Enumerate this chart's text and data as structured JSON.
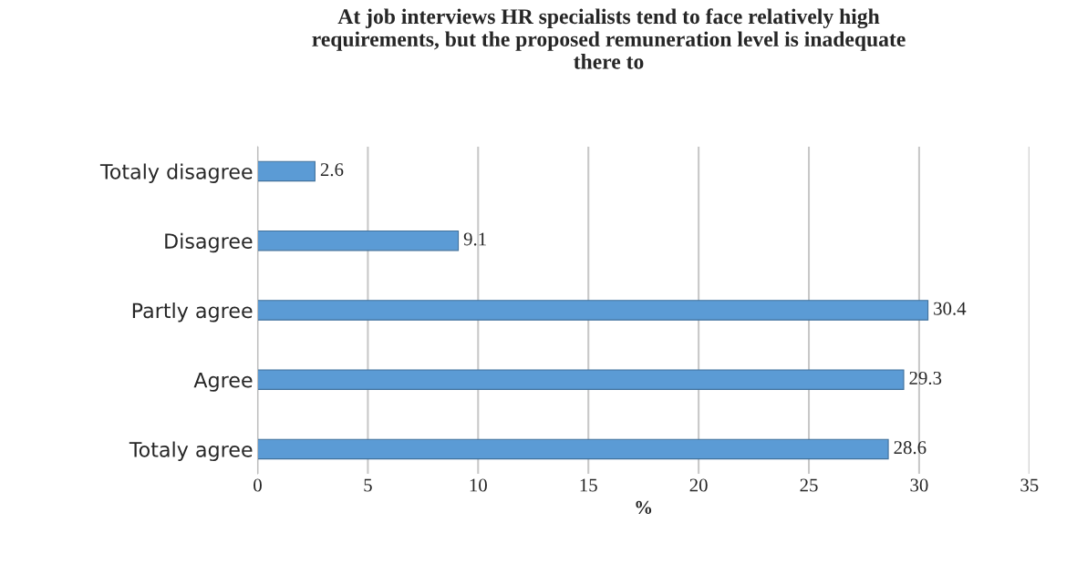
{
  "chart_data": {
    "type": "bar",
    "orientation": "horizontal",
    "title": "At job interviews HR specialists tend to face relatively high\nrequirements, but the proposed remuneration level is inadequate\nthere to",
    "xlabel": "%",
    "categories": [
      "Totaly disagree",
      "Disagree",
      "Partly agree",
      "Agree",
      "Totaly agree"
    ],
    "series": [
      {
        "color": "#5b9bd5",
        "values": [
          2.6,
          9.1,
          30.4,
          29.3,
          28.6
        ]
      }
    ],
    "xlim": [
      0,
      35
    ],
    "xticks": [
      0,
      5,
      10,
      15,
      20,
      25,
      30,
      35
    ],
    "grid": "x",
    "data_labels": true
  }
}
